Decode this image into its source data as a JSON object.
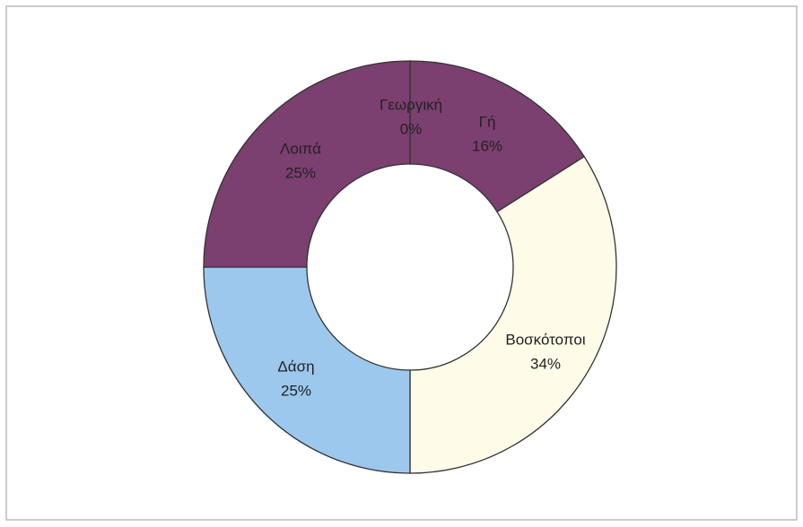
{
  "chart_data": {
    "type": "donut",
    "categories": [
      "Γεωργική",
      "Γή",
      "Βοσκότοποι",
      "Δάση",
      "Λοιπά"
    ],
    "values": [
      0,
      16,
      34,
      25,
      25
    ],
    "value_labels": [
      "0%",
      "16%",
      "34%",
      "25%",
      "25%"
    ],
    "colors": [
      "#7b3f70",
      "#7b3f70",
      "#fffbe9",
      "#9cc8ee",
      "#7b3f70"
    ]
  }
}
